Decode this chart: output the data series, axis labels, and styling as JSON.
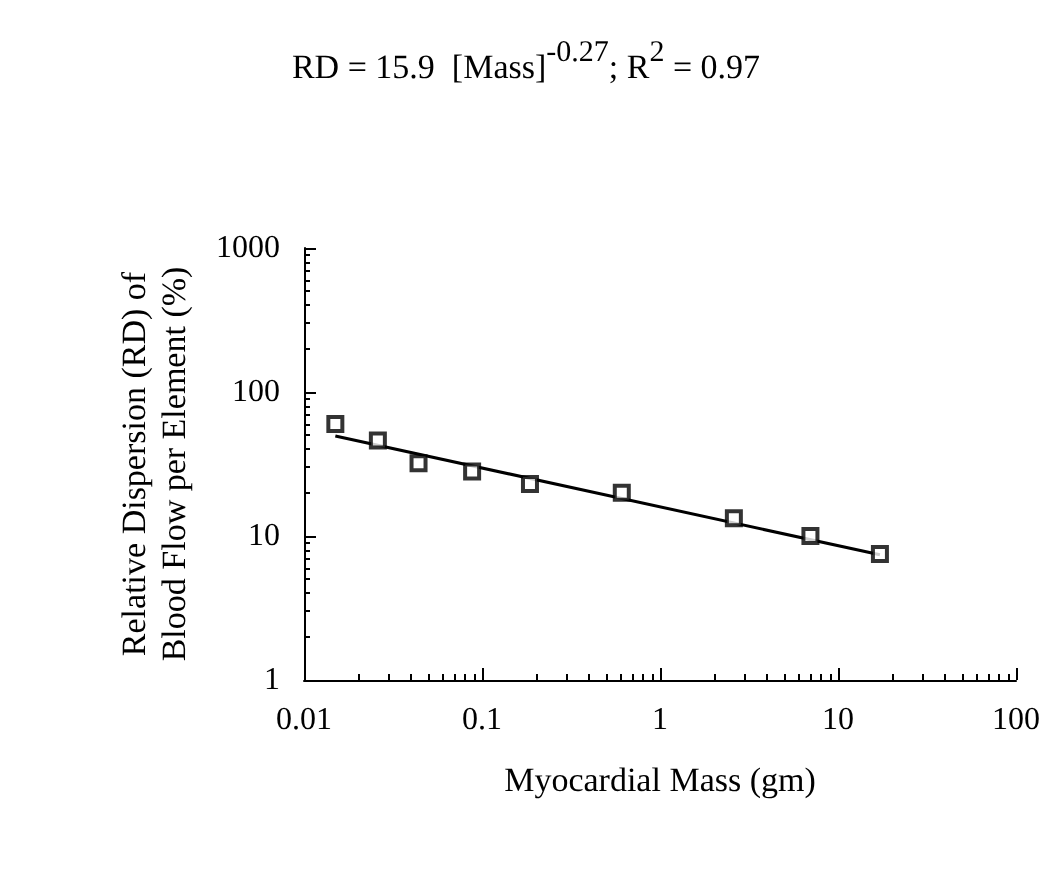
{
  "chart_data": {
    "type": "scatter",
    "title": "RD = 15.9  [Mass]$^{-0.27}$; R$^{2}$ = 0.97",
    "xlabel": "Myocardial Mass (gm)",
    "ylabel": "Relative Dispersion (RD) of\nBlood Flow per Element (%)",
    "log": "xy",
    "grid": false,
    "marker": "square",
    "xlim": [
      0.01,
      100
    ],
    "xticks": [
      0.01,
      0.1,
      1,
      10,
      100
    ],
    "ylim": [
      1,
      1000
    ],
    "yticks": [
      1,
      10,
      100,
      1000
    ],
    "series": [
      {
        "color": "#000000",
        "x": [
          0.015,
          0.026,
          0.044,
          0.088,
          0.186,
          0.61,
          2.6,
          7,
          17.2
        ],
        "values": [
          60,
          46,
          32,
          28,
          23,
          20,
          13.3,
          10,
          7.5
        ]
      },
      {
        "type": "line",
        "color": "#000000",
        "marker": "none",
        "line_style": "solid",
        "x": [
          0.015,
          17.2
        ],
        "values": [
          49.5,
          7.4
        ]
      }
    ]
  }
}
